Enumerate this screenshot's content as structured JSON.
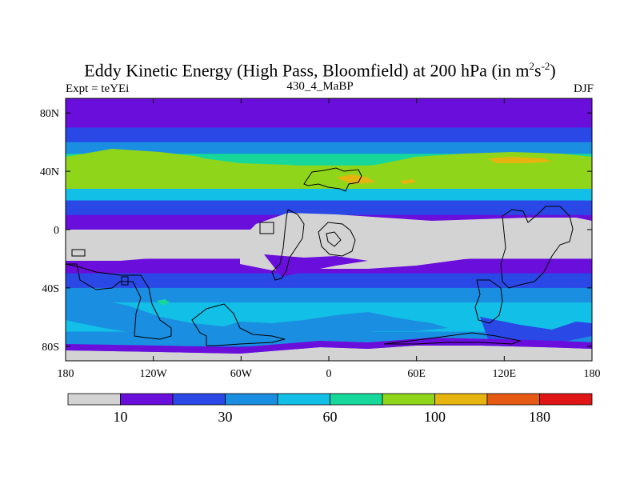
{
  "chart_data": {
    "type": "heatmap",
    "title_main": "Eddy Kinetic Energy (High Pass, Bloomfield) at 200 hPa (in m",
    "title_sup1": "2",
    "title_mid": "s",
    "title_sup2": "-2",
    "title_end": ")",
    "subtitle": "430_4_MaBP",
    "left_label": "Expt = teYEi",
    "right_label": "DJF",
    "x_ticks": [
      "180",
      "120W",
      "60W",
      "0",
      "60E",
      "120E",
      "180"
    ],
    "x_tick_values": [
      -180,
      -120,
      -60,
      0,
      60,
      120,
      180
    ],
    "y_ticks": [
      "80N",
      "40N",
      "0",
      "40S",
      "80S"
    ],
    "y_tick_values": [
      80,
      40,
      0,
      -40,
      -80
    ],
    "xlim": [
      -180,
      180
    ],
    "ylim": [
      -90,
      90
    ],
    "colorbar": {
      "colors": [
        "#d3d3d3",
        "#6a0edb",
        "#2a48e6",
        "#1a8ee0",
        "#12bfe6",
        "#16d89a",
        "#8fd61a",
        "#e6b40e",
        "#e65a14",
        "#e01616"
      ],
      "labels": [
        "10",
        "30",
        "60",
        "100",
        "180"
      ],
      "label_boundaries": [
        1,
        3,
        5,
        7,
        9
      ]
    },
    "bands": [
      {
        "lat": 90,
        "level": 1
      },
      {
        "lat": 80,
        "level": 1
      },
      {
        "lat": 70,
        "level": 2
      },
      {
        "lat": 60,
        "level": 3
      },
      {
        "lat": 52,
        "level": 5
      },
      {
        "lat": 44,
        "level": 6
      },
      {
        "lat": 36,
        "level": 6
      },
      {
        "lat": 28,
        "level": 4
      },
      {
        "lat": 20,
        "level": 2
      },
      {
        "lat": 10,
        "level": 1
      },
      {
        "lat": 0,
        "level": 0
      },
      {
        "lat": -10,
        "level": 0
      },
      {
        "lat": -20,
        "level": 1
      },
      {
        "lat": -30,
        "level": 2
      },
      {
        "lat": -40,
        "level": 3
      },
      {
        "lat": -50,
        "level": 4
      },
      {
        "lat": -60,
        "level": 4
      },
      {
        "lat": -70,
        "level": 3
      },
      {
        "lat": -80,
        "level": 2
      },
      {
        "lat": -86,
        "level": 0
      },
      {
        "lat": -90,
        "level": 0
      }
    ]
  }
}
